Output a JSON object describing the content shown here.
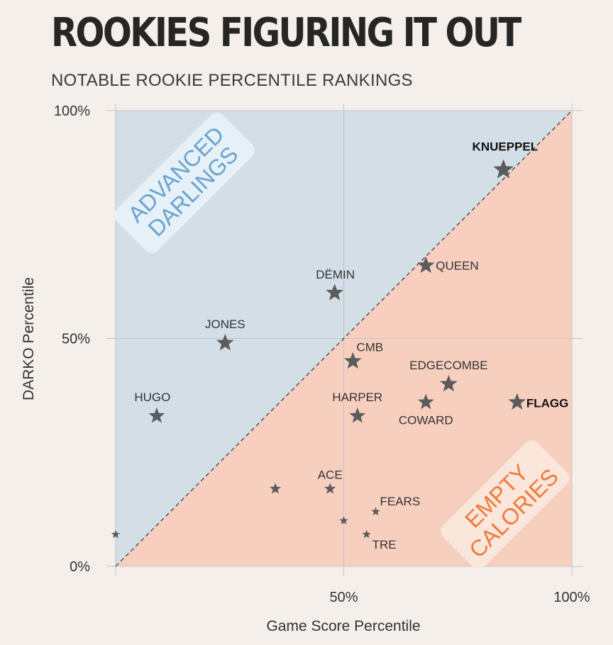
{
  "title": "ROOKIES FIGURING IT OUT",
  "subtitle": "NOTABLE ROOKIE PERCENTILE RANKINGS",
  "colors": {
    "upper_region": "#d3dee6",
    "lower_region": "#f7cfbf",
    "advanced_text": "#6aa3cf",
    "advanced_box": "#e6f0f7",
    "empty_text": "#f07a38",
    "empty_box": "#fbe6dc",
    "star": "#5c5c5c",
    "grid": "#c4c4c4"
  },
  "chart_data": {
    "type": "scatter",
    "xlabel": "Game Score Percentile",
    "ylabel": "DARKO Percentile",
    "xlim": [
      0,
      100
    ],
    "ylim": [
      0,
      100
    ],
    "x_ticks": [
      {
        "v": 50,
        "label": "50%"
      },
      {
        "v": 100,
        "label": "100%"
      }
    ],
    "y_ticks": [
      {
        "v": 0,
        "label": "0%"
      },
      {
        "v": 50,
        "label": "50%"
      },
      {
        "v": 100,
        "label": "100%"
      }
    ],
    "reference_line": "y = x",
    "regions": [
      {
        "name": "advanced",
        "lines": [
          "ADVANCED",
          "DARLINGS"
        ]
      },
      {
        "name": "empty",
        "lines": [
          "EMPTY",
          "CALORIES"
        ]
      }
    ],
    "points": [
      {
        "label": "KNUEPPEL",
        "x": 85,
        "y": 87,
        "size": "xl",
        "bold": true
      },
      {
        "label": "QUEEN",
        "x": 68,
        "y": 66,
        "size": "lg",
        "bold": false
      },
      {
        "label": "DËMIN",
        "x": 48,
        "y": 60,
        "size": "lg",
        "bold": false
      },
      {
        "label": "JONES",
        "x": 24,
        "y": 49,
        "size": "lg",
        "bold": false
      },
      {
        "label": "CMB",
        "x": 52,
        "y": 45,
        "size": "lg",
        "bold": false
      },
      {
        "label": "EDGECOMBE",
        "x": 73,
        "y": 40,
        "size": "lg",
        "bold": false
      },
      {
        "label": "FLAGG",
        "x": 88,
        "y": 36,
        "size": "lg",
        "bold": true
      },
      {
        "label": "COWARD",
        "x": 68,
        "y": 36,
        "size": "md",
        "bold": false
      },
      {
        "label": "HUGO",
        "x": 9,
        "y": 33,
        "size": "md",
        "bold": false
      },
      {
        "label": "HARPER",
        "x": 53,
        "y": 33,
        "size": "md",
        "bold": false
      },
      {
        "label": "ACE",
        "x": 47,
        "y": 17,
        "size": "sm",
        "bold": false
      },
      {
        "label": "",
        "x": 35,
        "y": 17,
        "size": "sm",
        "bold": false
      },
      {
        "label": "FEARS",
        "x": 57,
        "y": 12,
        "size": "xs",
        "bold": false
      },
      {
        "label": "",
        "x": 50,
        "y": 10,
        "size": "xs",
        "bold": false
      },
      {
        "label": "TRE",
        "x": 55,
        "y": 7,
        "size": "xs",
        "bold": false
      },
      {
        "label": "",
        "x": 0,
        "y": 7,
        "size": "xs",
        "bold": false
      }
    ]
  }
}
